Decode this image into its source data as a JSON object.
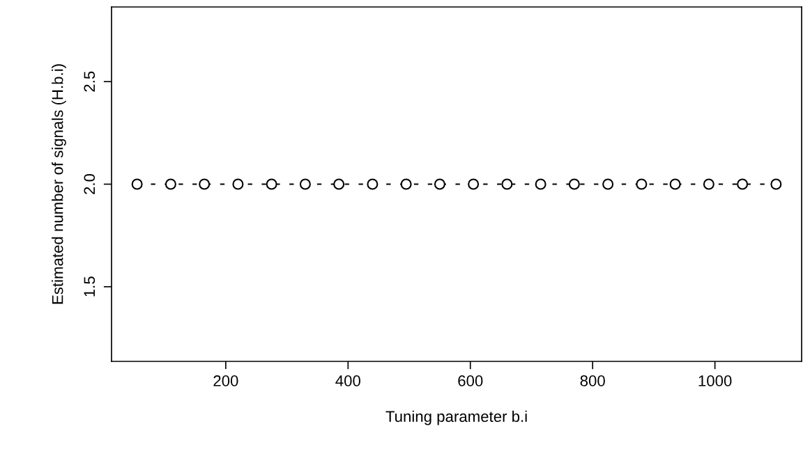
{
  "chart_data": {
    "type": "line",
    "xlabel": "Tuning parameter b.i",
    "ylabel": "Estimated number of signals (H.b.i)",
    "x": [
      55,
      110,
      165,
      220,
      275,
      330,
      385,
      440,
      495,
      550,
      605,
      660,
      715,
      770,
      825,
      880,
      935,
      990,
      1045,
      1100
    ],
    "series": [
      {
        "color": "#000000",
        "values": [
          2,
          2,
          2,
          2,
          2,
          2,
          2,
          2,
          2,
          2,
          2,
          2,
          2,
          2,
          2,
          2,
          2,
          2,
          2,
          2
        ]
      }
    ],
    "marker": "circle",
    "line_style": "dashed",
    "grid": false,
    "legend": false,
    "xlim": [
      13.2,
      1141.8
    ],
    "ylim": [
      1.136,
      2.864
    ],
    "xticks": [
      200,
      400,
      600,
      800,
      1000
    ],
    "yticks": [
      {
        "value": 1.5,
        "label": "1.5"
      },
      {
        "value": 2,
        "label": "2.0"
      },
      {
        "value": 2.5,
        "label": "2.5"
      }
    ]
  }
}
